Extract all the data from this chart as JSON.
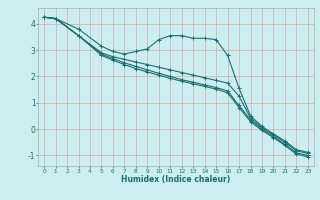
{
  "xlabel": "Humidex (Indice chaleur)",
  "bg_color": "#cceef0",
  "grid_color": "#d4aaaa",
  "line_color": "#1a7070",
  "xlim": [
    -0.5,
    23.5
  ],
  "ylim": [
    -1.4,
    4.6
  ],
  "yticks": [
    -1,
    0,
    1,
    2,
    3,
    4
  ],
  "xticks": [
    0,
    1,
    2,
    3,
    4,
    5,
    6,
    7,
    8,
    9,
    10,
    11,
    12,
    13,
    14,
    15,
    16,
    17,
    18,
    19,
    20,
    21,
    22,
    23
  ],
  "line1": {
    "x": [
      0,
      1,
      3,
      5,
      6,
      7,
      8,
      9,
      10,
      11,
      12,
      13,
      14,
      15,
      16,
      17,
      18,
      19,
      20,
      21,
      22,
      23
    ],
    "y": [
      4.25,
      4.2,
      3.8,
      3.15,
      2.95,
      2.85,
      2.95,
      3.05,
      3.4,
      3.55,
      3.55,
      3.45,
      3.45,
      3.4,
      2.8,
      1.55,
      0.5,
      0.1,
      -0.18,
      -0.45,
      -0.78,
      -0.88
    ]
  },
  "line2": {
    "x": [
      0,
      1,
      3,
      5,
      6,
      7,
      8,
      9,
      10,
      11,
      12,
      13,
      14,
      15,
      16,
      17,
      18,
      19,
      20,
      21,
      22,
      23
    ],
    "y": [
      4.25,
      4.2,
      3.55,
      2.9,
      2.75,
      2.65,
      2.55,
      2.45,
      2.35,
      2.25,
      2.15,
      2.05,
      1.95,
      1.85,
      1.75,
      1.25,
      0.42,
      0.05,
      -0.22,
      -0.5,
      -0.82,
      -0.92
    ]
  },
  "line3": {
    "x": [
      0,
      1,
      3,
      5,
      6,
      7,
      8,
      9,
      10,
      11,
      12,
      13,
      14,
      15,
      16,
      17,
      18,
      19,
      20,
      21,
      22,
      23
    ],
    "y": [
      4.25,
      4.2,
      3.55,
      2.85,
      2.68,
      2.52,
      2.38,
      2.25,
      2.12,
      2.0,
      1.88,
      1.78,
      1.68,
      1.58,
      1.45,
      0.9,
      0.35,
      0.0,
      -0.28,
      -0.58,
      -0.9,
      -1.0
    ]
  },
  "line4": {
    "x": [
      0,
      1,
      3,
      5,
      6,
      7,
      8,
      9,
      10,
      11,
      12,
      13,
      14,
      15,
      16,
      17,
      18,
      19,
      20,
      21,
      22,
      23
    ],
    "y": [
      4.25,
      4.2,
      3.55,
      2.8,
      2.62,
      2.45,
      2.3,
      2.17,
      2.05,
      1.93,
      1.82,
      1.72,
      1.62,
      1.52,
      1.38,
      0.82,
      0.28,
      -0.05,
      -0.32,
      -0.62,
      -0.95,
      -1.05
    ]
  }
}
